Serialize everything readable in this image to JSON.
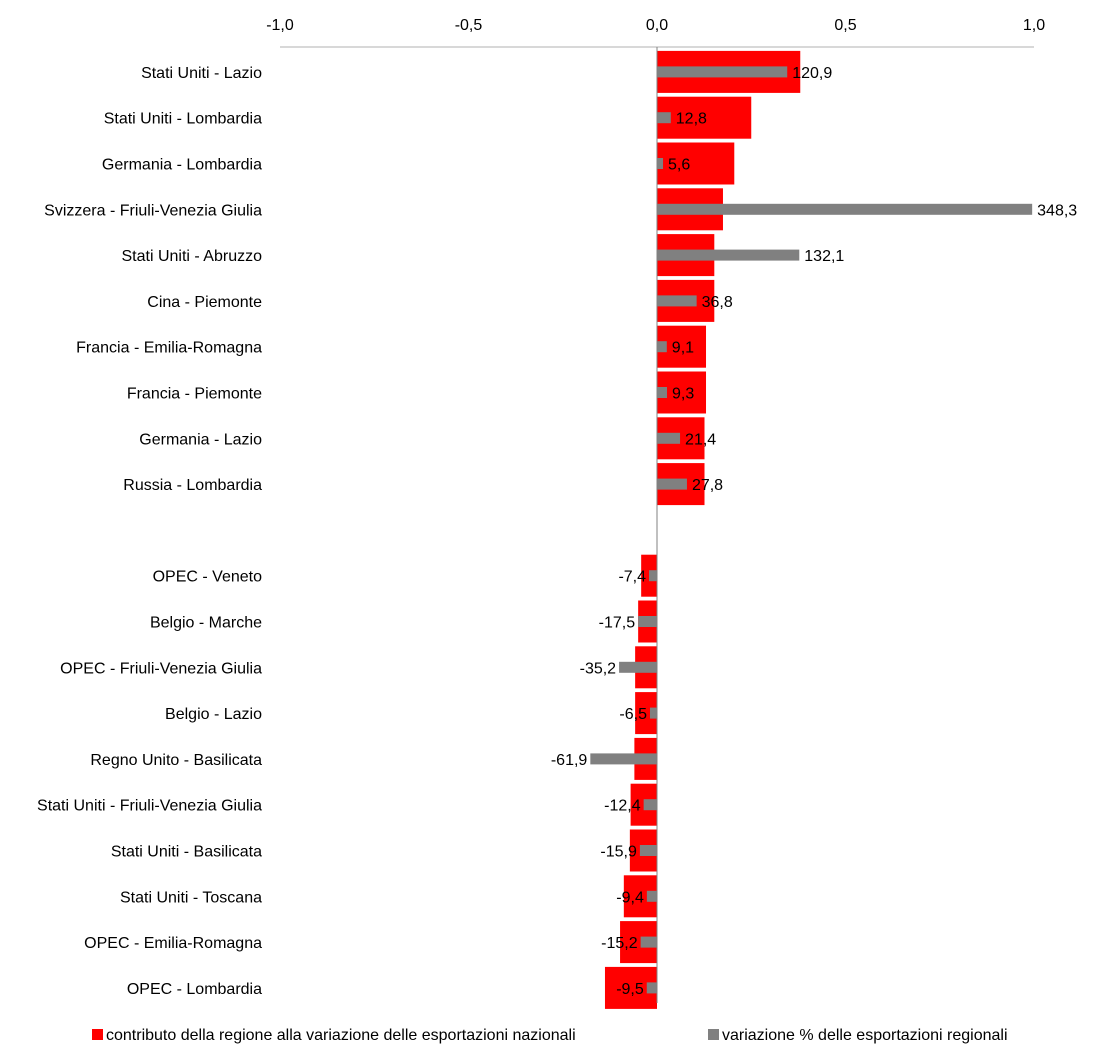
{
  "chart_data": {
    "type": "bar",
    "orientation": "horizontal",
    "title": "",
    "xlabel": "",
    "ylabel": "",
    "xlim": [
      -1.0,
      1.0
    ],
    "x_tick_values": [
      -1.0,
      -0.5,
      0.0,
      0.5,
      1.0
    ],
    "x_tick_labels": [
      "-1,0",
      "-0,5",
      "0,0",
      "0,5",
      "1,0"
    ],
    "grid": false,
    "legend_position": "bottom",
    "categories": [
      "Stati Uniti - Lazio",
      "Stati Uniti - Lombardia",
      "Germania - Lombardia",
      "Svizzera - Friuli-Venezia Giulia",
      "Stati Uniti - Abruzzo",
      "Cina - Piemonte",
      "Francia - Emilia-Romagna",
      "Francia - Piemonte",
      "Germania - Lazio",
      "Russia - Lombardia",
      "",
      "OPEC - Veneto",
      "Belgio - Marche",
      "OPEC - Friuli-Venezia Giulia",
      "Belgio - Lazio",
      "Regno Unito - Basilicata",
      "Stati Uniti - Friuli-Venezia Giulia",
      "Stati Uniti - Basilicata",
      "Stati Uniti - Toscana",
      "OPEC - Emilia-Romagna",
      "OPEC - Lombardia"
    ],
    "series": [
      {
        "name": "contributo della regione alla variazione delle esportazioni nazionali",
        "color": "#ff0000",
        "values": [
          0.38,
          0.25,
          0.205,
          0.175,
          0.152,
          0.152,
          0.13,
          0.13,
          0.126,
          0.126,
          null,
          -0.042,
          -0.05,
          -0.058,
          -0.058,
          -0.06,
          -0.07,
          -0.072,
          -0.088,
          -0.098,
          -0.138
        ]
      },
      {
        "name": "variazione % delle esportazioni regionali",
        "color": "#808080",
        "values": [
          120.9,
          12.8,
          5.6,
          348.3,
          132.1,
          36.8,
          9.1,
          9.3,
          21.4,
          27.8,
          null,
          -7.4,
          -17.5,
          -35.2,
          -6.5,
          -61.9,
          -12.4,
          -15.9,
          -9.4,
          -15.2,
          -9.5
        ],
        "data_labels": [
          "120,9",
          "12,8",
          "5,6",
          "348,3",
          "132,1",
          "36,8",
          "9,1",
          "9,3",
          "21,4",
          "27,8",
          "",
          "-7,4",
          "-17,5",
          "-35,2",
          "-6,5",
          "-61,9",
          "-12,4",
          "-15,9",
          "-9,4",
          "-15,2",
          "-9,5"
        ]
      }
    ]
  }
}
